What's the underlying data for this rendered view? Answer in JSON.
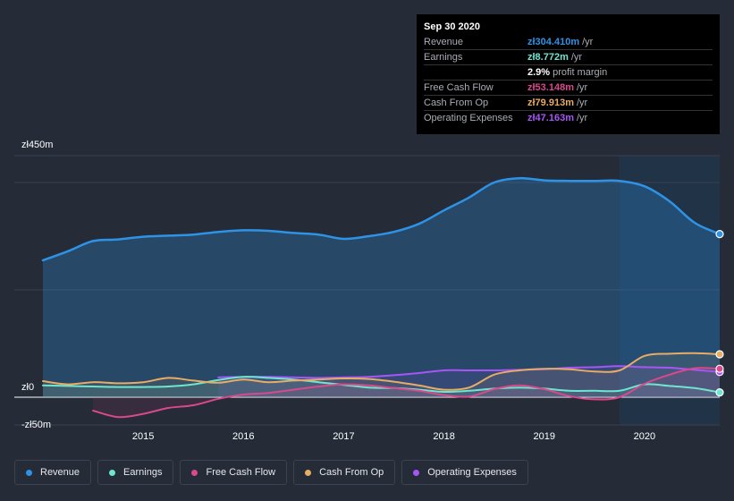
{
  "tooltip": {
    "date": "Sep 30 2020",
    "rows": [
      {
        "label": "Revenue",
        "value": "zł304.410m",
        "unit": "/yr",
        "color": "#2e93e6"
      },
      {
        "label": "Earnings",
        "value": "zł8.772m",
        "unit": "/yr",
        "color": "#6ee6cf"
      },
      {
        "label": "",
        "value": "2.9%",
        "unit": "profit margin",
        "color": "#ffffff"
      },
      {
        "label": "Free Cash Flow",
        "value": "zł53.148m",
        "unit": "/yr",
        "color": "#d9498b"
      },
      {
        "label": "Cash From Op",
        "value": "zł79.913m",
        "unit": "/yr",
        "color": "#e8ac65"
      },
      {
        "label": "Operating Expenses",
        "value": "zł47.163m",
        "unit": "/yr",
        "color": "#a855f7"
      }
    ]
  },
  "legend": [
    {
      "label": "Revenue",
      "color": "#2e93e6"
    },
    {
      "label": "Earnings",
      "color": "#6ee6cf"
    },
    {
      "label": "Free Cash Flow",
      "color": "#d9498b"
    },
    {
      "label": "Cash From Op",
      "color": "#e8ac65"
    },
    {
      "label": "Operating Expenses",
      "color": "#a855f7"
    }
  ],
  "chart_data": {
    "type": "line",
    "title": "",
    "xlabel": "",
    "ylabel": "",
    "y_tick_labels": [
      {
        "label": "zł450m",
        "value": 450
      },
      {
        "label": "zł0",
        "value": 0
      },
      {
        "label": "-zł50m",
        "value": -50
      }
    ],
    "x_tick_labels": [
      {
        "label": "2015",
        "value": 2015
      },
      {
        "label": "2016",
        "value": 2016
      },
      {
        "label": "2017",
        "value": 2017
      },
      {
        "label": "2018",
        "value": 2018
      },
      {
        "label": "2019",
        "value": 2019
      },
      {
        "label": "2020",
        "value": 2020
      }
    ],
    "xlim": [
      2014.0,
      2020.75
    ],
    "ylim": [
      -50,
      450
    ],
    "highlight_start": 2019.75,
    "series": [
      {
        "name": "Revenue",
        "color": "#2e93e6",
        "fill": true,
        "x": [
          2014.0,
          2014.25,
          2014.5,
          2014.75,
          2015.0,
          2015.25,
          2015.5,
          2015.75,
          2016.0,
          2016.25,
          2016.5,
          2016.75,
          2017.0,
          2017.25,
          2017.5,
          2017.75,
          2018.0,
          2018.25,
          2018.5,
          2018.75,
          2019.0,
          2019.25,
          2019.5,
          2019.75,
          2020.0,
          2020.25,
          2020.5,
          2020.75
        ],
        "values": [
          255,
          272,
          291,
          294,
          299,
          301,
          303,
          308,
          311,
          310,
          306,
          303,
          295,
          300,
          308,
          323,
          348,
          372,
          400,
          408,
          404,
          403,
          403,
          403,
          393,
          365,
          325,
          304
        ]
      },
      {
        "name": "Earnings",
        "color": "#6ee6cf",
        "x": [
          2014.0,
          2014.25,
          2014.5,
          2014.75,
          2015.0,
          2015.25,
          2015.5,
          2015.75,
          2016.0,
          2016.25,
          2016.5,
          2016.75,
          2017.0,
          2017.25,
          2017.5,
          2017.75,
          2018.0,
          2018.25,
          2018.5,
          2018.75,
          2019.0,
          2019.25,
          2019.5,
          2019.75,
          2020.0,
          2020.25,
          2020.5,
          2020.75
        ],
        "values": [
          22,
          21,
          20,
          19,
          19,
          20,
          24,
          32,
          38,
          36,
          33,
          28,
          23,
          18,
          17,
          14,
          10,
          12,
          16,
          18,
          16,
          12,
          12,
          12,
          24,
          21,
          17,
          9
        ]
      },
      {
        "name": "Free Cash Flow",
        "color": "#d9498b",
        "x": [
          2014.5,
          2014.75,
          2015.0,
          2015.25,
          2015.5,
          2015.75,
          2016.0,
          2016.25,
          2016.5,
          2016.75,
          2017.0,
          2017.25,
          2017.5,
          2017.75,
          2018.0,
          2018.25,
          2018.5,
          2018.75,
          2019.0,
          2019.25,
          2019.5,
          2019.75,
          2020.0,
          2020.25,
          2020.5,
          2020.75
        ],
        "values": [
          -25,
          -37,
          -31,
          -20,
          -15,
          -3,
          5,
          8,
          14,
          20,
          24,
          22,
          17,
          12,
          4,
          1,
          15,
          22,
          15,
          2,
          -4,
          0,
          25,
          42,
          54,
          53
        ]
      },
      {
        "name": "Cash From Op",
        "color": "#e8ac65",
        "x": [
          2014.0,
          2014.25,
          2014.5,
          2014.75,
          2015.0,
          2015.25,
          2015.5,
          2015.75,
          2016.0,
          2016.25,
          2016.5,
          2016.75,
          2017.0,
          2017.25,
          2017.5,
          2017.75,
          2018.0,
          2018.25,
          2018.5,
          2018.75,
          2019.0,
          2019.25,
          2019.5,
          2019.75,
          2020.0,
          2020.25,
          2020.5,
          2020.75
        ],
        "values": [
          30,
          24,
          28,
          26,
          28,
          36,
          31,
          27,
          33,
          28,
          31,
          33,
          35,
          34,
          29,
          22,
          14,
          18,
          42,
          50,
          53,
          52,
          48,
          50,
          77,
          81,
          82,
          80
        ]
      },
      {
        "name": "Operating Expenses",
        "color": "#a855f7",
        "x": [
          2015.75,
          2016.0,
          2016.25,
          2016.5,
          2016.75,
          2017.0,
          2017.25,
          2017.5,
          2017.75,
          2018.0,
          2018.25,
          2018.5,
          2018.75,
          2019.0,
          2019.25,
          2019.5,
          2019.75,
          2020.0,
          2020.25,
          2020.5,
          2020.75
        ],
        "values": [
          37,
          38,
          38,
          37,
          36,
          37,
          38,
          41,
          45,
          50,
          50,
          50,
          51,
          52,
          55,
          56,
          58,
          56,
          55,
          51,
          47
        ]
      }
    ]
  }
}
